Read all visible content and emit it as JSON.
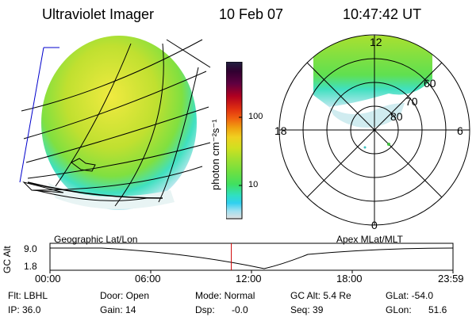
{
  "header": {
    "instrument": "Ultraviolet Imager",
    "date": "10 Feb 07",
    "time": "10:47:42 UT"
  },
  "colorbar": {
    "unit_label": "photon cm⁻²s⁻¹",
    "ticks": [
      "100",
      "10"
    ],
    "colors": [
      "#202040",
      "#300030",
      "#600040",
      "#b00020",
      "#e03010",
      "#f06010",
      "#f0a010",
      "#f0d020",
      "#d0e020",
      "#a0e030",
      "#70e040",
      "#40e060",
      "#30e0c0",
      "#30d0f0",
      "#a0e0f0",
      "#e0e0e0"
    ]
  },
  "polar": {
    "mlt_labels": [
      "12",
      "18",
      "6",
      "0"
    ],
    "lat_labels": [
      "60",
      "70",
      "80"
    ]
  },
  "timeline": {
    "left_label": "Geographic Lat/Lon",
    "right_label": "Apex MLat/MLT",
    "y_axis_title": "GC Alt",
    "y_ticks": [
      "9.0",
      "1.8"
    ],
    "x_ticks": [
      "00:00",
      "06:00",
      "12:00",
      "18:00",
      "23:59"
    ],
    "current_marker_hours": 10.8
  },
  "info": {
    "flt_label": "Flt: LBHL",
    "ip_label": "IP: 36.0",
    "door_label": "Door: Open",
    "gain_label": "Gain: 14",
    "mode_label": "Mode: Normal",
    "dsp_label": "Dsp:",
    "dsp_value": "-0.0",
    "gcalt_label": "GC Alt: 5.4 Re",
    "seq_label": "Seq: 39",
    "glat_label": "GLat: -54.0",
    "glon_label": "GLon:",
    "glon_value": "51.6"
  }
}
